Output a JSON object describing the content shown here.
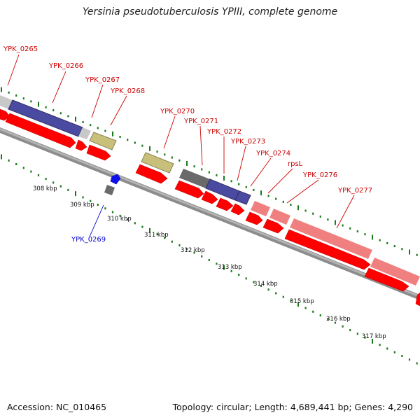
{
  "title": "Yersinia pseudotuberculosis YPIII, complete genome",
  "footer": {
    "accession": "Accession: NC_010465",
    "summary": "Topology: circular; Length: 4,689,441 bp; Genes: 4,290"
  },
  "colors": {
    "cds": "#ff0000",
    "gene_label_forward": "#cc0000",
    "gene_label_reverse": "#0000cc",
    "backbone": "#8c8c8c",
    "tick": "#1a7a1a",
    "rrna_pink": "#f08080",
    "olive": "#c8c07a",
    "navy": "#4a4aa0",
    "gray_gene": "#6a6a6a",
    "light_gray_gene": "#c8c8c8",
    "reverse_blue": "#1010ee"
  },
  "kbp_labels": [
    "308 kbp",
    "309 kbp",
    "310 kbp",
    "311 kbp",
    "312 kbp",
    "313 kbp",
    "314 kbp",
    "315 kbp",
    "316 kbp",
    "317 kbp"
  ],
  "gene_labels": [
    {
      "id": "g0265",
      "text": "YPK_0265",
      "strand": "forward"
    },
    {
      "id": "g0266",
      "text": "YPK_0266",
      "strand": "forward"
    },
    {
      "id": "g0267",
      "text": "YPK_0267",
      "strand": "forward"
    },
    {
      "id": "g0268",
      "text": "YPK_0268",
      "strand": "forward"
    },
    {
      "id": "g0269",
      "text": "YPK_0269",
      "strand": "reverse"
    },
    {
      "id": "g0270",
      "text": "YPK_0270",
      "strand": "forward"
    },
    {
      "id": "g0271",
      "text": "YPK_0271",
      "strand": "forward"
    },
    {
      "id": "g0272",
      "text": "YPK_0272",
      "strand": "forward"
    },
    {
      "id": "g0273",
      "text": "YPK_0273",
      "strand": "forward"
    },
    {
      "id": "g0274",
      "text": "YPK_0274",
      "strand": "forward"
    },
    {
      "id": "grpsL",
      "text": "rpsL",
      "strand": "forward"
    },
    {
      "id": "g0276",
      "text": "YPK_0276",
      "strand": "forward"
    },
    {
      "id": "g0277",
      "text": "YPK_0277",
      "strand": "forward"
    }
  ]
}
